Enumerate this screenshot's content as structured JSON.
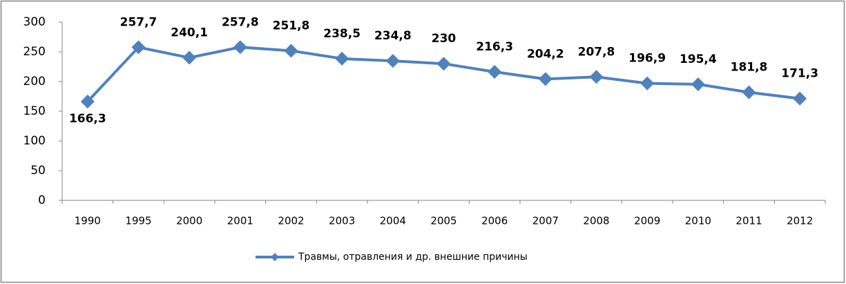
{
  "chart_data": {
    "type": "line",
    "categories": [
      "1990",
      "1995",
      "2000",
      "2001",
      "2002",
      "2003",
      "2004",
      "2005",
      "2006",
      "2007",
      "2008",
      "2009",
      "2010",
      "2011",
      "2012"
    ],
    "series": [
      {
        "name": "Травмы, отравления и др. внешние причины",
        "color": "#4f81bd",
        "values": [
          166.3,
          257.7,
          240.1,
          257.8,
          251.8,
          238.5,
          234.8,
          230,
          216.3,
          204.2,
          207.8,
          196.9,
          195.4,
          181.8,
          171.3
        ],
        "value_labels": [
          "166,3",
          "257,7",
          "240,1",
          "257,8",
          "251,8",
          "238,5",
          "234,8",
          "230",
          "216,3",
          "204,2",
          "207,8",
          "196,9",
          "195,4",
          "181,8",
          "171,3"
        ]
      }
    ],
    "ylim": [
      0,
      300
    ],
    "yticks": [
      0,
      50,
      100,
      150,
      200,
      250,
      300
    ],
    "legend": "bottom"
  }
}
